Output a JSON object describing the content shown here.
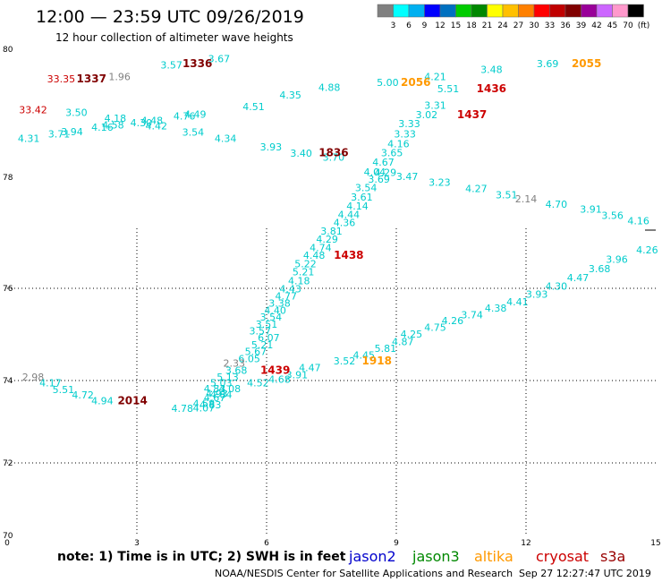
{
  "header": {
    "title": "12:00 — 23:59 UTC 09/26/2019",
    "subtitle": "12 hour collection of altimeter wave heights"
  },
  "legend": {
    "colors": [
      "#808080",
      "#00ffff",
      "#00b0f0",
      "#0000ff",
      "#0070c0",
      "#00cc00",
      "#008800",
      "#ffff00",
      "#ffc000",
      "#ff8000",
      "#ff0000",
      "#c00000",
      "#800000",
      "#990099",
      "#cc66ff",
      "#ff99cc",
      "#000000"
    ],
    "labels": [
      "3",
      "6",
      "9",
      "12",
      "15",
      "18",
      "21",
      "24",
      "27",
      "30",
      "33",
      "36",
      "39",
      "42",
      "45",
      "70",
      "(ft)"
    ]
  },
  "footer": {
    "note": "note:  1) Time is in UTC;  2) SWH is in feet",
    "satellites": [
      {
        "name": "jason2",
        "color": "#0000cc"
      },
      {
        "name": "jason3",
        "color": "#008800"
      },
      {
        "name": "altika",
        "color": "#ff9900"
      },
      {
        "name": "cryosat",
        "color": "#cc0000"
      },
      {
        "name": "s3a",
        "color": "#990000"
      }
    ],
    "credit": "NOAA/NESDIS Center for Satellite Applications and Research",
    "timestamp": "Sep 27 12:27:47 UTC 2019"
  },
  "chart_data": {
    "type": "scatter",
    "title": "12:00 — 23:59 UTC 09/26/2019",
    "x_ticks": [
      "0",
      "3",
      "6",
      "9",
      "12",
      "15"
    ],
    "y_ticks": [
      "70",
      "72",
      "74",
      "76",
      "78",
      "80"
    ],
    "grid": true,
    "points": [
      {
        "x": 0.6,
        "y": 79.0,
        "label": "33.42",
        "color": "#cc0000"
      },
      {
        "x": 1.25,
        "y": 79.48,
        "label": "33.35",
        "color": "#cc0000"
      },
      {
        "x": 2.6,
        "y": 79.52,
        "label": "1.96",
        "color": "#808080"
      },
      {
        "x": 3.8,
        "y": 79.7,
        "label": "3.57",
        "color": "#00cccc"
      },
      {
        "x": 4.9,
        "y": 79.8,
        "label": "3.67",
        "color": "#00cccc"
      },
      {
        "x": 5.7,
        "y": 79.05,
        "label": "4.51",
        "color": "#00cccc"
      },
      {
        "x": 6.55,
        "y": 79.23,
        "label": "4.35",
        "color": "#00cccc"
      },
      {
        "x": 7.45,
        "y": 79.35,
        "label": "4.88",
        "color": "#00cccc"
      },
      {
        "x": 8.8,
        "y": 79.43,
        "label": "5.00",
        "color": "#00cccc"
      },
      {
        "x": 9.9,
        "y": 79.52,
        "label": "4.21",
        "color": "#00cccc"
      },
      {
        "x": 11.2,
        "y": 79.63,
        "label": "3.48",
        "color": "#00cccc"
      },
      {
        "x": 12.5,
        "y": 79.72,
        "label": "3.69",
        "color": "#00cccc"
      },
      {
        "x": 10.2,
        "y": 79.33,
        "label": "5.51",
        "color": "#00cccc"
      },
      {
        "x": 9.9,
        "y": 79.07,
        "label": "3.31",
        "color": "#00cccc"
      },
      {
        "x": 9.7,
        "y": 78.92,
        "label": "3.02",
        "color": "#00cccc"
      },
      {
        "x": 9.3,
        "y": 78.78,
        "label": "3.33",
        "color": "#00cccc"
      },
      {
        "x": 9.2,
        "y": 78.62,
        "label": "3.33",
        "color": "#00cccc"
      },
      {
        "x": 9.05,
        "y": 78.47,
        "label": "4.16",
        "color": "#00cccc"
      },
      {
        "x": 8.9,
        "y": 78.33,
        "label": "3.65",
        "color": "#00cccc"
      },
      {
        "x": 8.7,
        "y": 78.18,
        "label": "4.67",
        "color": "#00cccc"
      },
      {
        "x": 8.5,
        "y": 78.03,
        "label": "4.04",
        "color": "#00cccc"
      },
      {
        "x": 8.75,
        "y": 78.02,
        "label": "4.29",
        "color": "#00cccc"
      },
      {
        "x": 9.25,
        "y": 77.95,
        "label": "3.47",
        "color": "#00cccc"
      },
      {
        "x": 10.0,
        "y": 77.85,
        "label": "3.23",
        "color": "#00cccc"
      },
      {
        "x": 10.85,
        "y": 77.73,
        "label": "4.27",
        "color": "#00cccc"
      },
      {
        "x": 11.55,
        "y": 77.62,
        "label": "3.51",
        "color": "#00cccc"
      },
      {
        "x": 12.0,
        "y": 77.55,
        "label": "2.14",
        "color": "#808080"
      },
      {
        "x": 12.7,
        "y": 77.45,
        "label": "4.70",
        "color": "#00cccc"
      },
      {
        "x": 13.5,
        "y": 77.36,
        "label": "3.91",
        "color": "#00cccc"
      },
      {
        "x": 14.0,
        "y": 77.25,
        "label": "3.56",
        "color": "#00cccc"
      },
      {
        "x": 14.6,
        "y": 77.15,
        "label": "4.16",
        "color": "#00cccc"
      },
      {
        "x": 8.6,
        "y": 77.9,
        "label": "3.69",
        "color": "#00cccc"
      },
      {
        "x": 8.3,
        "y": 77.75,
        "label": "3.54",
        "color": "#00cccc"
      },
      {
        "x": 8.2,
        "y": 77.58,
        "label": "3.61",
        "color": "#00cccc"
      },
      {
        "x": 8.1,
        "y": 77.42,
        "label": "4.14",
        "color": "#00cccc"
      },
      {
        "x": 7.9,
        "y": 77.27,
        "label": "4.44",
        "color": "#00cccc"
      },
      {
        "x": 7.8,
        "y": 77.12,
        "label": "4.36",
        "color": "#00cccc"
      },
      {
        "x": 7.5,
        "y": 76.97,
        "label": "3.81",
        "color": "#00cccc"
      },
      {
        "x": 7.4,
        "y": 76.82,
        "label": "4.29",
        "color": "#00cccc"
      },
      {
        "x": 7.25,
        "y": 76.67,
        "label": "4.74",
        "color": "#00cccc"
      },
      {
        "x": 7.1,
        "y": 76.53,
        "label": "4.48",
        "color": "#00cccc"
      },
      {
        "x": 6.9,
        "y": 76.38,
        "label": "5.22",
        "color": "#00cccc"
      },
      {
        "x": 6.85,
        "y": 76.23,
        "label": "5.21",
        "color": "#00cccc"
      },
      {
        "x": 6.75,
        "y": 76.07,
        "label": "4.18",
        "color": "#00cccc"
      },
      {
        "x": 6.55,
        "y": 75.91,
        "label": "4.43",
        "color": "#00cccc"
      },
      {
        "x": 6.45,
        "y": 75.76,
        "label": "4.77",
        "color": "#00cccc"
      },
      {
        "x": 6.3,
        "y": 75.6,
        "label": "3.38",
        "color": "#00cccc"
      },
      {
        "x": 6.2,
        "y": 75.45,
        "label": "4.40",
        "color": "#00cccc"
      },
      {
        "x": 6.1,
        "y": 75.3,
        "label": "3.54",
        "color": "#00cccc"
      },
      {
        "x": 6.0,
        "y": 75.15,
        "label": "3.51",
        "color": "#00cccc"
      },
      {
        "x": 5.85,
        "y": 75.0,
        "label": "3.57",
        "color": "#00cccc"
      },
      {
        "x": 6.05,
        "y": 74.85,
        "label": "6.07",
        "color": "#00cccc"
      },
      {
        "x": 5.9,
        "y": 74.7,
        "label": "5.21",
        "color": "#00cccc"
      },
      {
        "x": 5.75,
        "y": 74.55,
        "label": "5.67",
        "color": "#00cccc"
      },
      {
        "x": 5.6,
        "y": 74.4,
        "label": "6.05",
        "color": "#00cccc"
      },
      {
        "x": 5.25,
        "y": 74.3,
        "label": "2.33",
        "color": "#808080"
      },
      {
        "x": 5.3,
        "y": 74.15,
        "label": "3.68",
        "color": "#00cccc"
      },
      {
        "x": 5.1,
        "y": 74.0,
        "label": "5.13",
        "color": "#00cccc"
      },
      {
        "x": 4.95,
        "y": 73.86,
        "label": "5.03",
        "color": "#00cccc"
      },
      {
        "x": 4.8,
        "y": 73.72,
        "label": "4.83",
        "color": "#00cccc"
      },
      {
        "x": 5.15,
        "y": 73.72,
        "label": "4.08",
        "color": "#00cccc"
      },
      {
        "x": 4.85,
        "y": 73.6,
        "label": "4.93",
        "color": "#00cccc"
      },
      {
        "x": 4.95,
        "y": 73.58,
        "label": "4.84",
        "color": "#00cccc"
      },
      {
        "x": 4.8,
        "y": 73.5,
        "label": "4.67",
        "color": "#00cccc"
      },
      {
        "x": 4.55,
        "y": 73.36,
        "label": "4.58",
        "color": "#00cccc"
      },
      {
        "x": 4.7,
        "y": 73.33,
        "label": "4.83",
        "color": "#00cccc"
      },
      {
        "x": 4.05,
        "y": 73.24,
        "label": "4.78",
        "color": "#00cccc"
      },
      {
        "x": 4.55,
        "y": 73.25,
        "label": "4.07",
        "color": "#00cccc"
      },
      {
        "x": 6.3,
        "y": 73.95,
        "label": "4.68",
        "color": "#00cccc"
      },
      {
        "x": 5.8,
        "y": 73.86,
        "label": "4.52",
        "color": "#00cccc"
      },
      {
        "x": 6.7,
        "y": 74.05,
        "label": "3.91",
        "color": "#00cccc"
      },
      {
        "x": 7.0,
        "y": 74.2,
        "label": "4.47",
        "color": "#00cccc"
      },
      {
        "x": 7.8,
        "y": 74.35,
        "label": "3.52",
        "color": "#00cccc"
      },
      {
        "x": 8.25,
        "y": 74.48,
        "label": "4.45",
        "color": "#00cccc"
      },
      {
        "x": 8.75,
        "y": 74.62,
        "label": "5.81",
        "color": "#00cccc"
      },
      {
        "x": 9.15,
        "y": 74.77,
        "label": "4.87",
        "color": "#00cccc"
      },
      {
        "x": 9.35,
        "y": 74.93,
        "label": "4.25",
        "color": "#00cccc"
      },
      {
        "x": 9.9,
        "y": 75.08,
        "label": "4.75",
        "color": "#00cccc"
      },
      {
        "x": 10.3,
        "y": 75.22,
        "label": "4.26",
        "color": "#00cccc"
      },
      {
        "x": 10.75,
        "y": 75.35,
        "label": "3.74",
        "color": "#00cccc"
      },
      {
        "x": 11.3,
        "y": 75.5,
        "label": "4.38",
        "color": "#00cccc"
      },
      {
        "x": 11.8,
        "y": 75.63,
        "label": "4.41",
        "color": "#00cccc"
      },
      {
        "x": 12.25,
        "y": 75.8,
        "label": "3.93",
        "color": "#00cccc"
      },
      {
        "x": 12.7,
        "y": 75.97,
        "label": "4.30",
        "color": "#00cccc"
      },
      {
        "x": 13.2,
        "y": 76.13,
        "label": "4.47",
        "color": "#00cccc"
      },
      {
        "x": 13.7,
        "y": 76.29,
        "label": "3.68",
        "color": "#00cccc"
      },
      {
        "x": 14.1,
        "y": 76.46,
        "label": "3.96",
        "color": "#00cccc"
      },
      {
        "x": 14.8,
        "y": 76.63,
        "label": "4.26",
        "color": "#00cccc"
      },
      {
        "x": 0.6,
        "y": 74.0,
        "label": "2.98",
        "color": "#808080"
      },
      {
        "x": 1.0,
        "y": 73.86,
        "label": "4.17",
        "color": "#00cccc"
      },
      {
        "x": 1.3,
        "y": 73.7,
        "label": "5.51",
        "color": "#00cccc"
      },
      {
        "x": 1.75,
        "y": 73.56,
        "label": "4.72",
        "color": "#00cccc"
      },
      {
        "x": 2.2,
        "y": 73.42,
        "label": "4.94",
        "color": "#00cccc"
      },
      {
        "x": 0.5,
        "y": 78.55,
        "label": "4.31",
        "color": "#00cccc"
      },
      {
        "x": 1.2,
        "y": 78.62,
        "label": "3.71",
        "color": "#00cccc"
      },
      {
        "x": 1.5,
        "y": 78.66,
        "label": "3.94",
        "color": "#00cccc"
      },
      {
        "x": 2.2,
        "y": 78.73,
        "label": "4.16",
        "color": "#00cccc"
      },
      {
        "x": 2.45,
        "y": 78.76,
        "label": "4.58",
        "color": "#00cccc"
      },
      {
        "x": 2.5,
        "y": 78.87,
        "label": "4.18",
        "color": "#00cccc"
      },
      {
        "x": 1.6,
        "y": 78.96,
        "label": "3.50",
        "color": "#00cccc"
      },
      {
        "x": 3.1,
        "y": 78.8,
        "label": "4.30",
        "color": "#00cccc"
      },
      {
        "x": 3.35,
        "y": 78.83,
        "label": "4.48",
        "color": "#00cccc"
      },
      {
        "x": 3.45,
        "y": 78.75,
        "label": "4.42",
        "color": "#00cccc"
      },
      {
        "x": 4.1,
        "y": 78.9,
        "label": "4.76",
        "color": "#00cccc"
      },
      {
        "x": 4.35,
        "y": 78.93,
        "label": "4.49",
        "color": "#00cccc"
      },
      {
        "x": 4.3,
        "y": 78.65,
        "label": "3.54",
        "color": "#00cccc"
      },
      {
        "x": 5.05,
        "y": 78.55,
        "label": "4.34",
        "color": "#00cccc"
      },
      {
        "x": 6.1,
        "y": 78.42,
        "label": "3.93",
        "color": "#00cccc"
      },
      {
        "x": 6.8,
        "y": 78.32,
        "label": "3.40",
        "color": "#00cccc"
      },
      {
        "x": 7.55,
        "y": 78.26,
        "label": "3.70",
        "color": "#00cccc"
      }
    ],
    "events": [
      {
        "x": 1.95,
        "y": 79.48,
        "label": "1337",
        "color": "#800000"
      },
      {
        "x": 4.4,
        "y": 79.72,
        "label": "1336",
        "color": "#800000"
      },
      {
        "x": 9.45,
        "y": 79.43,
        "label": "2056",
        "color": "#ff9900"
      },
      {
        "x": 13.4,
        "y": 79.72,
        "label": "2055",
        "color": "#ff9900"
      },
      {
        "x": 11.2,
        "y": 79.33,
        "label": "1436",
        "color": "#cc0000"
      },
      {
        "x": 10.75,
        "y": 78.92,
        "label": "1437",
        "color": "#cc0000"
      },
      {
        "x": 7.55,
        "y": 78.33,
        "label": "1836",
        "color": "#800000"
      },
      {
        "x": 7.9,
        "y": 76.53,
        "label": "1438",
        "color": "#cc0000"
      },
      {
        "x": 6.2,
        "y": 74.15,
        "label": "1439",
        "color": "#cc0000"
      },
      {
        "x": 8.55,
        "y": 74.35,
        "label": "1918",
        "color": "#ff9900"
      },
      {
        "x": 2.9,
        "y": 73.42,
        "label": "2014",
        "color": "#800000"
      }
    ]
  }
}
